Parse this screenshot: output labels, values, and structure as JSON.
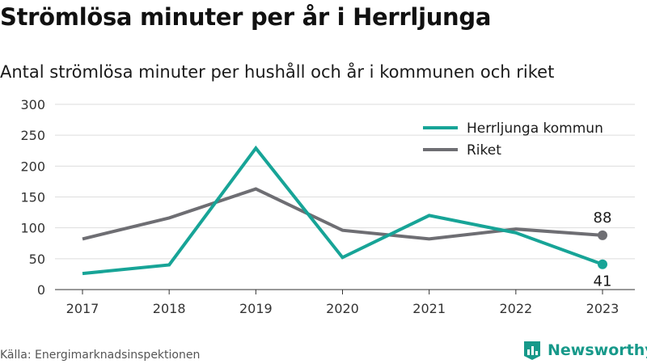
{
  "title": "Strömlösa minuter per år i Herrljunga",
  "subtitle": "Antal strömlösa minuter per hushåll och år i kommunen och riket",
  "source": "Källa: Energimarknadsinspektionen",
  "brand": "Newsworthy",
  "colors": {
    "herrljunga": "#17a497",
    "riket": "#6e6e73",
    "grid": "#dddddd",
    "brand": "#17998a"
  },
  "chart_data": {
    "type": "line",
    "x": [
      "2017",
      "2018",
      "2019",
      "2020",
      "2021",
      "2022",
      "2023"
    ],
    "yticks": [
      "0",
      "50",
      "100",
      "150",
      "200",
      "250",
      "300"
    ],
    "ylim": [
      0,
      300
    ],
    "grid": true,
    "legend_position": "top-right",
    "series": [
      {
        "name": "Herrljunga kommun",
        "values": [
          26,
          40,
          229,
          52,
          120,
          92,
          41
        ],
        "end_label": "41",
        "end_label_position": "below"
      },
      {
        "name": "Riket",
        "values": [
          82,
          116,
          163,
          96,
          82,
          98,
          88
        ],
        "end_label": "88",
        "end_label_position": "above"
      }
    ]
  }
}
